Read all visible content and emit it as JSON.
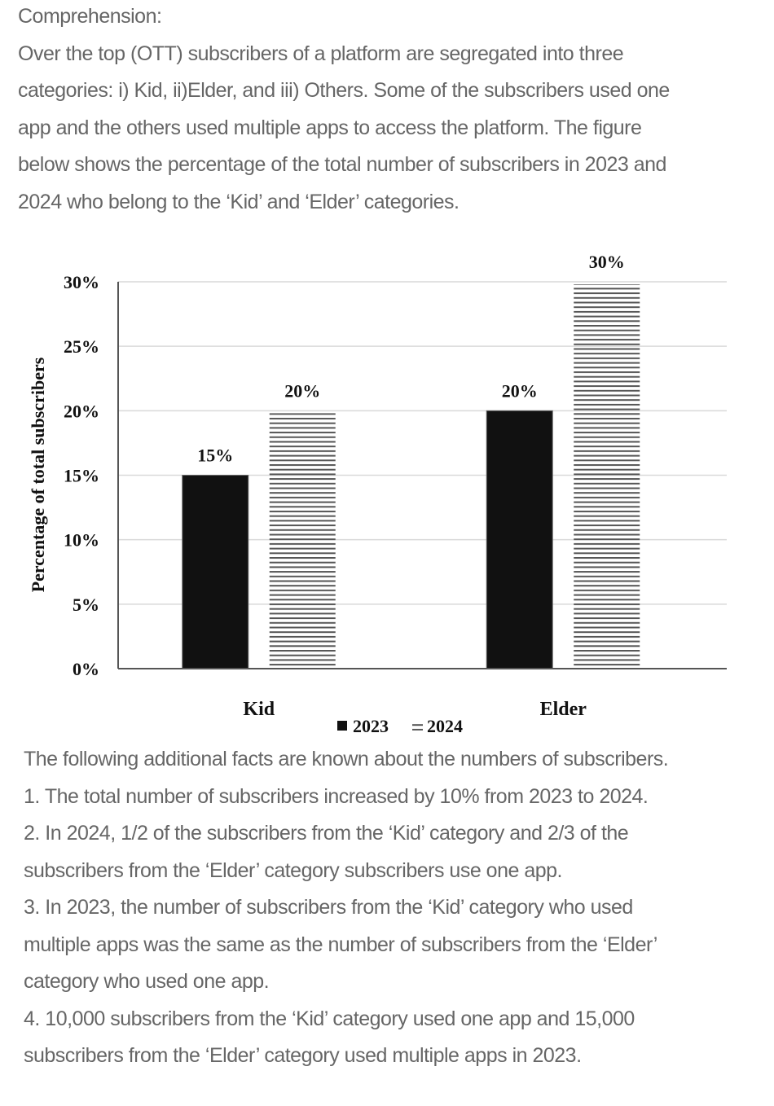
{
  "intro": {
    "heading": "Comprehension:",
    "lines": [
      "Over the top (OTT) subscribers of a platform are segregated into three",
      "categories: i) Kid, ii)Elder, and iii) Others. Some of the subscribers used one",
      "app and the others used multiple apps to access the platform. The figure",
      "below shows the percentage of the total number of subscribers in 2023 and",
      "2024 who belong to the ‘Kid’ and ‘Elder’ categories."
    ]
  },
  "facts": {
    "lines": [
      "The following additional facts are known about the numbers of subscribers.",
      "1. The total number of subscribers increased by 10% from 2023 to 2024.",
      "2. In 2024, 1/2 of the subscribers from the ‘Kid’ category and 2/3 of the",
      "subscribers from the ‘Elder’ category subscribers use one app.",
      "3. In 2023, the number of subscribers from the ‘Kid’ category who used",
      "multiple apps was the same as the number of subscribers from the ‘Elder’",
      "category who used one app.",
      "4. 10,000 subscribers from the ‘Kid’ category used one app and 15,000",
      "subscribers from the ‘Elder’ category used multiple apps in 2023."
    ]
  },
  "chart_data": {
    "type": "bar",
    "title": "",
    "xlabel": "",
    "ylabel": "Percentage of total subscribers",
    "categories": [
      "Kid",
      "Elder"
    ],
    "series": [
      {
        "name": "2023",
        "values": [
          15,
          20
        ],
        "labels": [
          "15%",
          "20%"
        ],
        "fill": "solid",
        "color": "#111111"
      },
      {
        "name": "2024",
        "values": [
          20,
          30
        ],
        "labels": [
          "20%",
          "30%"
        ],
        "fill": "horizontal-stripes",
        "color": "#555555"
      }
    ],
    "ylim": [
      0,
      30
    ],
    "yticks": [
      0,
      5,
      10,
      15,
      20,
      25,
      30
    ],
    "ytick_labels": [
      "0%",
      "5%",
      "10%",
      "15%",
      "20%",
      "25%",
      "30%"
    ],
    "grid": true,
    "legend": {
      "position": "bottom-center",
      "entries": [
        "2023",
        "2024"
      ]
    }
  }
}
